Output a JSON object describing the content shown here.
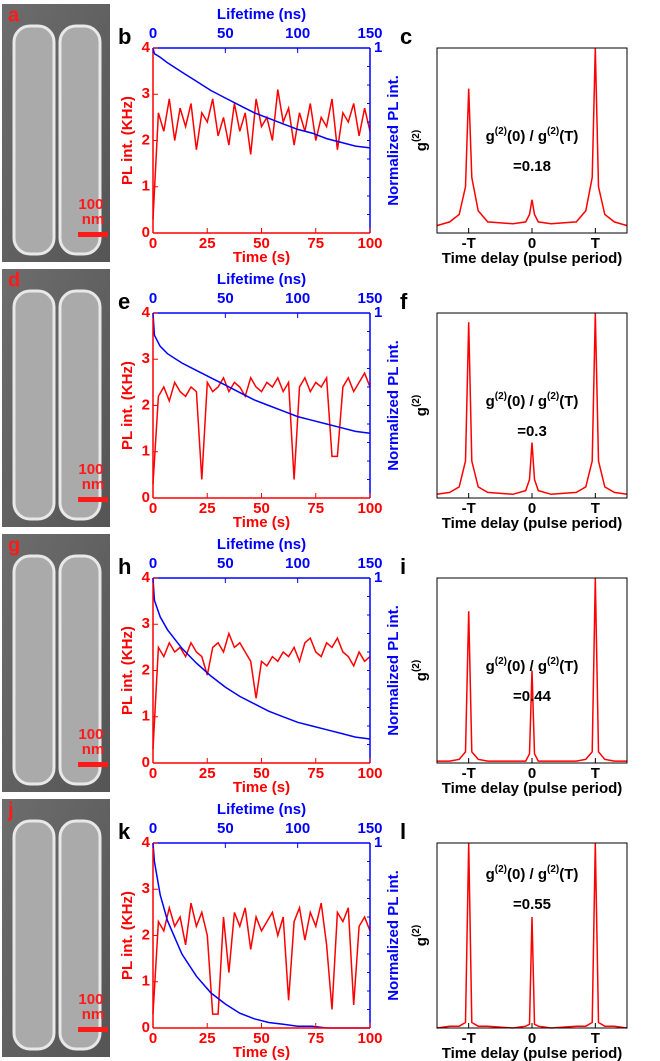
{
  "chart_data": [
    {
      "type": "dual",
      "label": "b",
      "xlabel": "Time (s)",
      "x2label": "Lifetime (ns)",
      "ylabel": "PL int. (KHz)",
      "y2label": "Normalized PL int.",
      "xlim": [
        0,
        100
      ],
      "xticks": [
        0,
        25,
        50,
        75,
        100
      ],
      "x2lim": [
        0,
        150
      ],
      "x2ticks": [
        0,
        50,
        100,
        150
      ],
      "ylim": [
        0,
        4
      ],
      "yticks": [
        0,
        1,
        2,
        3,
        4
      ],
      "y2lim": [
        0,
        1
      ],
      "y2ticks": [
        1
      ],
      "series": [
        {
          "color": "#ff0000",
          "x": [
            0,
            2.5,
            5,
            7.5,
            10,
            12.5,
            15,
            17.5,
            20,
            22.5,
            25,
            27.5,
            30,
            32.5,
            35,
            37.5,
            40,
            42.5,
            45,
            47.5,
            50,
            52.5,
            55,
            57.5,
            60,
            62.5,
            65,
            67.5,
            70,
            72.5,
            75,
            77.5,
            80,
            82.5,
            85,
            87.5,
            90,
            92.5,
            95,
            97.5,
            100
          ],
          "values": [
            0.3,
            2.6,
            2.2,
            2.9,
            2.0,
            2.7,
            2.3,
            2.8,
            1.8,
            2.6,
            2.4,
            2.9,
            2.1,
            2.5,
            1.9,
            2.8,
            2.2,
            2.6,
            1.7,
            2.9,
            2.3,
            2.5,
            2.0,
            3.1,
            2.4,
            2.7,
            1.9,
            2.6,
            2.2,
            2.8,
            2.0,
            2.5,
            2.3,
            2.9,
            1.8,
            2.6,
            2.4,
            2.8,
            2.1,
            2.7,
            2.2
          ]
        },
        {
          "color": "#0000ff",
          "axis": "y2",
          "xaxis": "x2",
          "x": [
            0,
            1,
            5,
            10,
            20,
            30,
            40,
            50,
            60,
            70,
            80,
            90,
            100,
            110,
            120,
            130,
            140,
            150
          ],
          "values": [
            1.0,
            0.97,
            0.95,
            0.92,
            0.87,
            0.82,
            0.77,
            0.73,
            0.69,
            0.65,
            0.62,
            0.59,
            0.56,
            0.54,
            0.51,
            0.49,
            0.47,
            0.46
          ]
        }
      ]
    },
    {
      "type": "g2",
      "label": "c",
      "xlabel": "Time delay (pulse period)",
      "ylabel": "g(2)",
      "annotation": "g(2)(0) / g(2)(T)",
      "annotation_value": "=0.18",
      "xlim": [
        -1.5,
        1.5
      ],
      "xticks": [
        {
          "value": -1,
          "label": "-T"
        },
        0,
        {
          "value": 1,
          "label": "T"
        }
      ],
      "ylim": [
        0,
        1
      ],
      "series": [
        {
          "color": "#ff0000",
          "x": [
            -1.5,
            -1.3,
            -1.15,
            -1.05,
            -1.0,
            -0.95,
            -0.85,
            -0.7,
            -0.3,
            -0.1,
            -0.04,
            0,
            0.04,
            0.1,
            0.3,
            0.7,
            0.85,
            0.95,
            1.0,
            1.05,
            1.15,
            1.3,
            1.5
          ],
          "values": [
            0.04,
            0.06,
            0.1,
            0.25,
            0.78,
            0.3,
            0.12,
            0.06,
            0.05,
            0.06,
            0.1,
            0.18,
            0.1,
            0.06,
            0.05,
            0.06,
            0.12,
            0.3,
            1.0,
            0.25,
            0.1,
            0.06,
            0.04
          ]
        }
      ]
    },
    {
      "type": "dual",
      "label": "e",
      "xlabel": "Time (s)",
      "x2label": "Lifetime (ns)",
      "ylabel": "PL int. (KHz)",
      "y2label": "Normalized PL int.",
      "xlim": [
        0,
        100
      ],
      "xticks": [
        0,
        25,
        50,
        75,
        100
      ],
      "x2lim": [
        0,
        150
      ],
      "x2ticks": [
        0,
        50,
        100,
        150
      ],
      "ylim": [
        0,
        4
      ],
      "yticks": [
        0,
        1,
        2,
        3,
        4
      ],
      "y2lim": [
        0,
        1
      ],
      "y2ticks": [
        1
      ],
      "series": [
        {
          "color": "#ff0000",
          "x": [
            0,
            2.5,
            5,
            7.5,
            10,
            12.5,
            15,
            17.5,
            20,
            22.5,
            25,
            27.5,
            30,
            32.5,
            35,
            37.5,
            40,
            42.5,
            45,
            47.5,
            50,
            52.5,
            55,
            57.5,
            60,
            62.5,
            65,
            67.5,
            70,
            72.5,
            75,
            77.5,
            80,
            82.5,
            85,
            87.5,
            90,
            92.5,
            95,
            97.5,
            100
          ],
          "values": [
            0.3,
            2.2,
            2.4,
            2.1,
            2.5,
            2.3,
            2.2,
            2.4,
            2.3,
            0.4,
            2.5,
            2.3,
            2.4,
            2.6,
            2.3,
            2.5,
            2.4,
            2.2,
            2.6,
            2.4,
            2.3,
            2.5,
            2.4,
            2.6,
            2.3,
            2.5,
            0.4,
            2.4,
            2.6,
            2.3,
            2.5,
            2.4,
            2.6,
            0.9,
            0.9,
            2.4,
            2.6,
            2.3,
            2.5,
            2.7,
            2.4
          ]
        },
        {
          "color": "#0000ff",
          "axis": "y2",
          "xaxis": "x2",
          "x": [
            0,
            1,
            5,
            10,
            20,
            30,
            40,
            50,
            60,
            70,
            80,
            90,
            100,
            110,
            120,
            130,
            140,
            150
          ],
          "values": [
            1.0,
            0.88,
            0.82,
            0.78,
            0.73,
            0.69,
            0.65,
            0.61,
            0.57,
            0.53,
            0.5,
            0.47,
            0.44,
            0.42,
            0.4,
            0.38,
            0.36,
            0.35
          ]
        }
      ]
    },
    {
      "type": "g2",
      "label": "f",
      "xlabel": "Time delay (pulse period)",
      "ylabel": "g(2)",
      "annotation": "g(2)(0) / g(2)(T)",
      "annotation_value": "=0.3",
      "xlim": [
        -1.5,
        1.5
      ],
      "xticks": [
        {
          "value": -1,
          "label": "-T"
        },
        0,
        {
          "value": 1,
          "label": "T"
        }
      ],
      "ylim": [
        0,
        1
      ],
      "series": [
        {
          "color": "#ff0000",
          "x": [
            -1.5,
            -1.3,
            -1.15,
            -1.05,
            -1.0,
            -0.95,
            -0.85,
            -0.7,
            -0.3,
            -0.1,
            -0.04,
            0,
            0.04,
            0.1,
            0.3,
            0.7,
            0.85,
            0.95,
            1.0,
            1.05,
            1.15,
            1.3,
            1.5
          ],
          "values": [
            0.02,
            0.03,
            0.06,
            0.2,
            0.95,
            0.2,
            0.06,
            0.03,
            0.02,
            0.04,
            0.1,
            0.3,
            0.1,
            0.04,
            0.02,
            0.03,
            0.06,
            0.2,
            1.0,
            0.2,
            0.06,
            0.03,
            0.02
          ]
        }
      ]
    },
    {
      "type": "dual",
      "label": "h",
      "xlabel": "Time (s)",
      "x2label": "Lifetime (ns)",
      "ylabel": "PL int. (KHz)",
      "y2label": "Normalized PL int.",
      "xlim": [
        0,
        100
      ],
      "xticks": [
        0,
        25,
        50,
        75,
        100
      ],
      "x2lim": [
        0,
        150
      ],
      "x2ticks": [
        0,
        50,
        100,
        150
      ],
      "ylim": [
        0,
        4
      ],
      "yticks": [
        0,
        1,
        2,
        3,
        4
      ],
      "y2lim": [
        0,
        1
      ],
      "y2ticks": [
        1
      ],
      "series": [
        {
          "color": "#ff0000",
          "x": [
            0,
            2.5,
            5,
            7.5,
            10,
            12.5,
            15,
            17.5,
            20,
            22.5,
            25,
            27.5,
            30,
            32.5,
            35,
            37.5,
            40,
            42.5,
            45,
            47.5,
            50,
            52.5,
            55,
            57.5,
            60,
            62.5,
            65,
            67.5,
            70,
            72.5,
            75,
            77.5,
            80,
            82.5,
            85,
            87.5,
            90,
            92.5,
            95,
            97.5,
            100
          ],
          "values": [
            0.3,
            2.5,
            2.3,
            2.6,
            2.4,
            2.5,
            2.3,
            2.6,
            2.4,
            2.3,
            1.9,
            2.5,
            2.6,
            2.4,
            2.8,
            2.5,
            2.6,
            2.4,
            2.2,
            1.4,
            2.2,
            2.1,
            2.3,
            2.2,
            2.4,
            2.3,
            2.5,
            2.2,
            2.6,
            2.7,
            2.4,
            2.3,
            2.6,
            2.5,
            2.7,
            2.4,
            2.3,
            2.1,
            2.4,
            2.2,
            2.3
          ]
        },
        {
          "color": "#0000ff",
          "axis": "y2",
          "xaxis": "x2",
          "x": [
            0,
            1,
            5,
            10,
            20,
            30,
            40,
            50,
            60,
            70,
            80,
            90,
            100,
            110,
            120,
            130,
            140,
            150
          ],
          "values": [
            1.0,
            0.88,
            0.79,
            0.72,
            0.62,
            0.54,
            0.47,
            0.41,
            0.36,
            0.32,
            0.28,
            0.25,
            0.22,
            0.2,
            0.18,
            0.16,
            0.14,
            0.13
          ]
        }
      ]
    },
    {
      "type": "g2",
      "label": "i",
      "xlabel": "Time delay (pulse period)",
      "ylabel": "g(2)",
      "annotation": "g(2)(0) / g(2)(T)",
      "annotation_value": "=0.44",
      "xlim": [
        -1.5,
        1.5
      ],
      "xticks": [
        {
          "value": -1,
          "label": "-T"
        },
        0,
        {
          "value": 1,
          "label": "T"
        }
      ],
      "ylim": [
        0,
        1
      ],
      "series": [
        {
          "color": "#ff0000",
          "x": [
            -1.5,
            -1.3,
            -1.15,
            -1.05,
            -1.0,
            -0.95,
            -0.85,
            -0.7,
            -0.3,
            -0.1,
            -0.04,
            0,
            0.04,
            0.1,
            0.3,
            0.7,
            0.85,
            0.95,
            1.0,
            1.05,
            1.15,
            1.3,
            1.5
          ],
          "values": [
            0.01,
            0.01,
            0.02,
            0.06,
            0.82,
            0.06,
            0.02,
            0.01,
            0.01,
            0.01,
            0.05,
            0.5,
            0.05,
            0.01,
            0.01,
            0.01,
            0.02,
            0.06,
            1.0,
            0.06,
            0.02,
            0.01,
            0.01
          ]
        }
      ]
    },
    {
      "type": "dual",
      "label": "k",
      "xlabel": "Time (s)",
      "x2label": "Lifetime (ns)",
      "ylabel": "PL int. (KHz)",
      "y2label": "Normalized PL int.",
      "xlim": [
        0,
        100
      ],
      "xticks": [
        0,
        25,
        50,
        75,
        100
      ],
      "x2lim": [
        0,
        150
      ],
      "x2ticks": [
        0,
        50,
        100,
        150
      ],
      "ylim": [
        0,
        4
      ],
      "yticks": [
        0,
        1,
        2,
        3,
        4
      ],
      "y2lim": [
        0,
        1
      ],
      "y2ticks": [
        1
      ],
      "series": [
        {
          "color": "#ff0000",
          "x": [
            0,
            2.5,
            5,
            7.5,
            10,
            12.5,
            15,
            17.5,
            20,
            22.5,
            25,
            27.5,
            30,
            32.5,
            35,
            37.5,
            40,
            42.5,
            45,
            47.5,
            50,
            52.5,
            55,
            57.5,
            60,
            62.5,
            65,
            67.5,
            70,
            72.5,
            75,
            77.5,
            80,
            82.5,
            85,
            87.5,
            90,
            92.5,
            95,
            97.5,
            100
          ],
          "values": [
            0.3,
            2.3,
            2.1,
            2.6,
            2.2,
            2.4,
            1.8,
            2.7,
            2.2,
            2.5,
            2.0,
            0.3,
            0.3,
            2.4,
            1.2,
            2.5,
            2.2,
            2.6,
            1.7,
            2.4,
            2.1,
            2.3,
            2.5,
            2.0,
            2.4,
            0.6,
            2.3,
            2.6,
            1.9,
            2.5,
            2.2,
            2.7,
            1.8,
            0.4,
            2.5,
            2.3,
            2.6,
            0.5,
            2.2,
            2.4,
            2.1
          ]
        },
        {
          "color": "#0000ff",
          "axis": "y2",
          "xaxis": "x2",
          "x": [
            0,
            1,
            5,
            10,
            20,
            30,
            40,
            50,
            60,
            70,
            80,
            90,
            100,
            110,
            120,
            130,
            140,
            150
          ],
          "values": [
            1.0,
            0.9,
            0.72,
            0.58,
            0.4,
            0.28,
            0.19,
            0.13,
            0.08,
            0.05,
            0.03,
            0.02,
            0.01,
            0.01,
            0.0,
            0.0,
            0.0,
            0.0
          ]
        }
      ]
    },
    {
      "type": "g2",
      "label": "l",
      "xlabel": "Time delay (pulse period)",
      "ylabel": "g(2)",
      "annotation": "g(2)(0) / g(2)(T)",
      "annotation_value": "=0.55",
      "xlim": [
        -1.5,
        1.5
      ],
      "xticks": [
        {
          "value": -1,
          "label": "-T"
        },
        0,
        {
          "value": 1,
          "label": "T"
        }
      ],
      "ylim": [
        0,
        1
      ],
      "series": [
        {
          "color": "#ff0000",
          "x": [
            -1.5,
            -1.3,
            -1.15,
            -1.05,
            -1.0,
            -0.95,
            -0.85,
            -0.7,
            -0.3,
            -0.1,
            -0.04,
            0,
            0.04,
            0.1,
            0.3,
            0.7,
            0.85,
            0.95,
            1.0,
            1.05,
            1.15,
            1.3,
            1.5
          ],
          "values": [
            0.0,
            0.01,
            0.01,
            0.03,
            1.0,
            0.03,
            0.01,
            0.01,
            0.0,
            0.01,
            0.02,
            0.6,
            0.02,
            0.01,
            0.0,
            0.01,
            0.01,
            0.03,
            1.0,
            0.03,
            0.01,
            0.01,
            0.0
          ]
        }
      ]
    }
  ],
  "images": [
    {
      "label": "a",
      "scale_bar": "100 nm"
    },
    {
      "label": "d",
      "scale_bar": "100 nm"
    },
    {
      "label": "g",
      "scale_bar": "100 nm"
    },
    {
      "label": "j",
      "scale_bar": "100 nm"
    }
  ]
}
